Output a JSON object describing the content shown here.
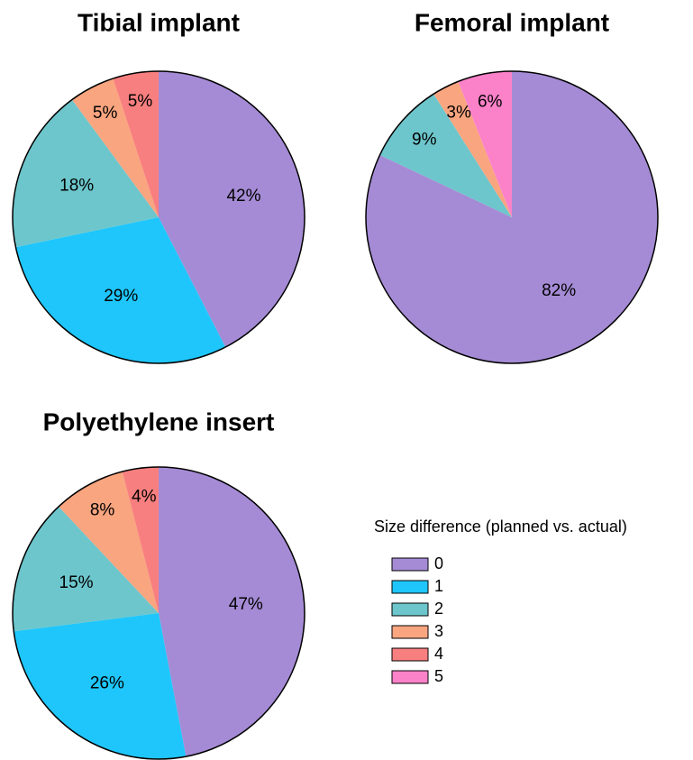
{
  "chart_data": [
    {
      "type": "pie",
      "title": "Tibial implant",
      "categories": [
        "0",
        "1",
        "2",
        "3",
        "4"
      ],
      "values": [
        42,
        29,
        18,
        5,
        5
      ],
      "value_labels": [
        "42%",
        "29%",
        "18%",
        "5%",
        "5%"
      ]
    },
    {
      "type": "pie",
      "title": "Femoral implant",
      "categories": [
        "0",
        "2",
        "3",
        "5"
      ],
      "values": [
        82,
        9,
        3,
        6
      ],
      "value_labels": [
        "82%",
        "9%",
        "3%",
        "6%"
      ]
    },
    {
      "type": "pie",
      "title": "Polyethylene insert",
      "categories": [
        "0",
        "1",
        "2",
        "3",
        "4"
      ],
      "values": [
        47,
        26,
        15,
        8,
        4
      ],
      "value_labels": [
        "47%",
        "26%",
        "15%",
        "8%",
        "4%"
      ]
    }
  ],
  "legend": {
    "title": "Size difference (planned vs. actual)",
    "categories": [
      "0",
      "1",
      "2",
      "3",
      "4",
      "5"
    ],
    "colors": [
      "#a58bd5",
      "#1fc6fb",
      "#6dc6cc",
      "#f9a57f",
      "#f87f7f",
      "#fb82c9"
    ]
  }
}
